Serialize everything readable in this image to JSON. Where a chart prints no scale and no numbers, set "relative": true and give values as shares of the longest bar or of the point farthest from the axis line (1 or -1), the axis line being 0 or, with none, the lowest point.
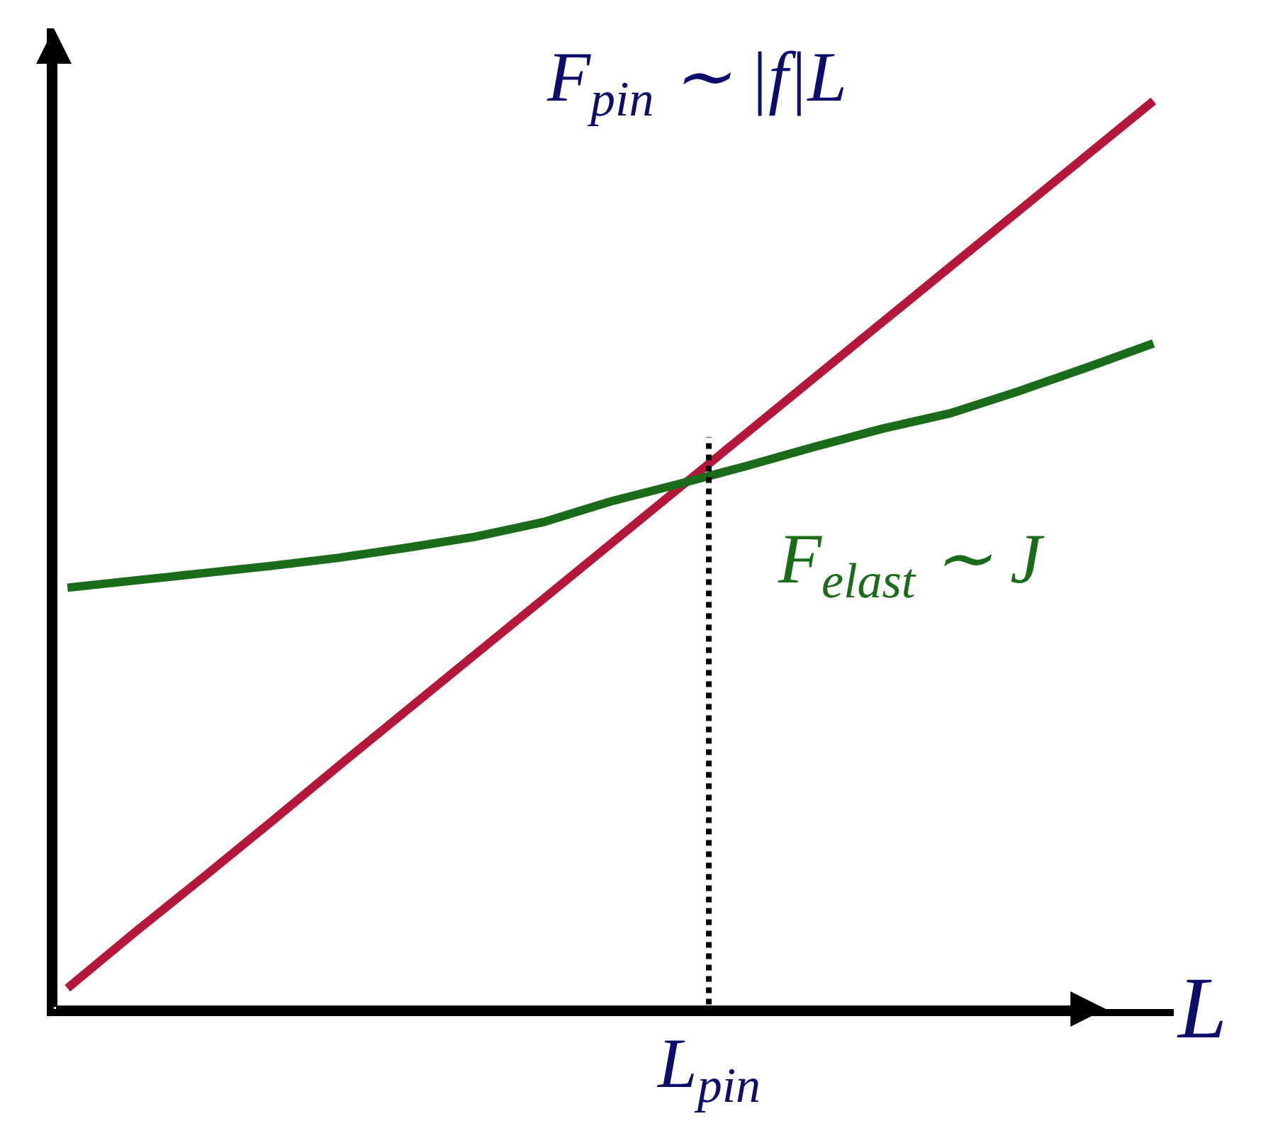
{
  "chart_data": {
    "type": "line",
    "relative": true,
    "xlabel": "L",
    "legend": false,
    "tick_labels": false,
    "annotations": [
      "L$_{pin}$"
    ],
    "categories": [
      null,
      null,
      null,
      null,
      null,
      null,
      null,
      null,
      null,
      null,
      null,
      null,
      null,
      null,
      null,
      null,
      null
    ],
    "series": [
      {
        "name": "F$_{pin}$ ∼ |f|L",
        "color": "#b5173a",
        "values": [
          0.023,
          0.085,
          0.145,
          0.206,
          0.268,
          0.329,
          0.39,
          0.451,
          0.512,
          0.573,
          0.634,
          0.695,
          0.756,
          0.817,
          0.878,
          0.939,
          1.0
        ]
      },
      {
        "name": "F$_{elast}$ ∼ J",
        "color": "#1a6b1a",
        "values": [
          0.464,
          0.472,
          0.48,
          0.488,
          0.497,
          0.508,
          0.52,
          0.536,
          0.559,
          0.578,
          0.598,
          0.619,
          0.639,
          0.656,
          0.68,
          0.706,
          0.733
        ]
      }
    ]
  }
}
